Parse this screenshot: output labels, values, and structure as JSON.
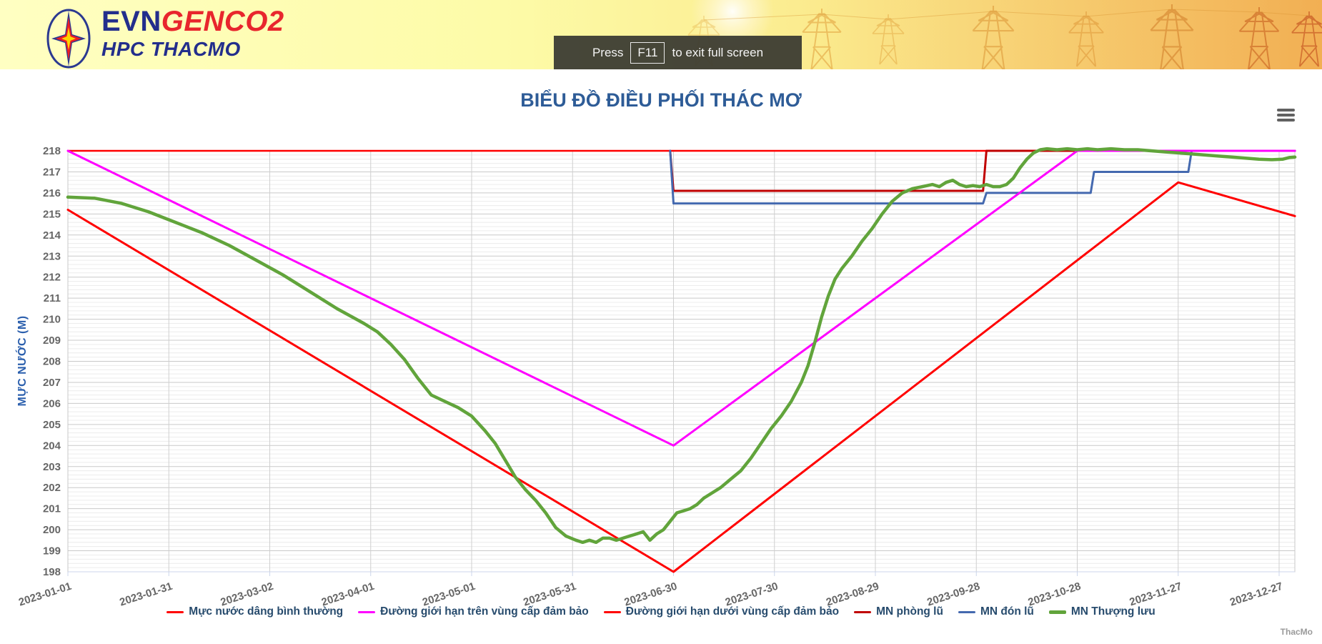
{
  "header": {
    "logo": {
      "brand_evn": "EVN",
      "brand_genco": "GENCO2",
      "brand_sub": "HPC THACMO"
    },
    "fullscreen_toast": {
      "prefix": "Press",
      "key": "F11",
      "suffix": "to exit full screen"
    }
  },
  "chart": {
    "credits": "ThacMo",
    "menu_icon": "hamburger"
  },
  "colors": {
    "title_text": "#2e5c97",
    "axis_title_text": "#2b5fad",
    "tick_label_text": "#666666",
    "legend_text": "#274b6d",
    "axis_line": "#ccd6eb",
    "major_grid": "#c9c9c9",
    "minor_grid": "#ececec"
  },
  "chart_data": {
    "type": "line",
    "title": "BIỂU ĐỒ ĐIỀU PHỐI THÁC MƠ",
    "y_axis": {
      "title": "MỰC NƯỚC (M)",
      "min": 198,
      "max": 218,
      "tick_step": 1,
      "minor_step": 0.2
    },
    "x_axis": {
      "tick_interval_days": 30,
      "start_day": 0,
      "end_day": 364.7,
      "tick_labels": [
        "2023-01-01",
        "2023-01-31",
        "2023-03-02",
        "2023-04-01",
        "2023-05-01",
        "2023-05-31",
        "2023-06-30",
        "2023-07-30",
        "2023-08-29",
        "2023-09-28",
        "2023-10-28",
        "2023-11-27",
        "2023-12-27"
      ]
    },
    "legend_position": "bottom-center",
    "grid": true,
    "draw_order": [
      0,
      3,
      4,
      2,
      1,
      5
    ],
    "series": [
      {
        "name": "Mực nước dâng bình thường",
        "color": "#ff0000",
        "width": 2.5,
        "points": [
          [
            0,
            218
          ],
          [
            364.7,
            218
          ]
        ]
      },
      {
        "name": "Đường giới hạn trên vùng cấp đảm bảo",
        "color": "#ff00ff",
        "width": 3,
        "points": [
          [
            0,
            218
          ],
          [
            180,
            204
          ],
          [
            300,
            218
          ],
          [
            364.7,
            218
          ]
        ]
      },
      {
        "name": "Đường giới hạn dưới vùng cấp đảm bảo",
        "color": "#ff0000",
        "width": 3,
        "points": [
          [
            0,
            215.2
          ],
          [
            180,
            198
          ],
          [
            330,
            216.5
          ],
          [
            364.7,
            214.9
          ]
        ]
      },
      {
        "name": "MN phòng lũ",
        "color": "#c00000",
        "width": 3,
        "points": [
          [
            179,
            218
          ],
          [
            180,
            216.1
          ],
          [
            272,
            216.1
          ],
          [
            273,
            218
          ],
          [
            364.7,
            218
          ]
        ]
      },
      {
        "name": "MN đón lũ",
        "color": "#4469af",
        "width": 3,
        "points": [
          [
            179,
            218
          ],
          [
            180,
            215.5
          ],
          [
            272,
            215.5
          ],
          [
            273,
            216
          ],
          [
            304,
            216
          ],
          [
            305,
            217
          ],
          [
            333,
            217
          ],
          [
            334,
            218
          ],
          [
            364.7,
            218
          ]
        ]
      },
      {
        "name": "MN Thượng lưu",
        "color": "#61a43b",
        "width": 4.5,
        "points": [
          [
            0,
            215.8
          ],
          [
            8,
            215.75
          ],
          [
            16,
            215.5
          ],
          [
            24,
            215.1
          ],
          [
            32,
            214.6
          ],
          [
            40,
            214.1
          ],
          [
            48,
            213.5
          ],
          [
            56,
            212.8
          ],
          [
            64,
            212.1
          ],
          [
            72,
            211.3
          ],
          [
            80,
            210.5
          ],
          [
            88,
            209.8
          ],
          [
            92,
            209.4
          ],
          [
            96,
            208.8
          ],
          [
            100,
            208.1
          ],
          [
            104,
            207.2
          ],
          [
            108,
            206.4
          ],
          [
            112,
            206.1
          ],
          [
            116,
            205.8
          ],
          [
            120,
            205.4
          ],
          [
            124,
            204.7
          ],
          [
            127,
            204.1
          ],
          [
            130,
            203.3
          ],
          [
            133,
            202.5
          ],
          [
            136,
            201.9
          ],
          [
            139,
            201.4
          ],
          [
            142,
            200.8
          ],
          [
            145,
            200.1
          ],
          [
            148,
            199.7
          ],
          [
            151,
            199.5
          ],
          [
            153,
            199.4
          ],
          [
            155,
            199.5
          ],
          [
            157,
            199.4
          ],
          [
            159,
            199.6
          ],
          [
            161,
            199.6
          ],
          [
            163,
            199.5
          ],
          [
            165,
            199.6
          ],
          [
            167,
            199.7
          ],
          [
            169,
            199.8
          ],
          [
            171,
            199.9
          ],
          [
            173,
            199.5
          ],
          [
            175,
            199.8
          ],
          [
            177,
            200.0
          ],
          [
            179,
            200.4
          ],
          [
            181,
            200.8
          ],
          [
            183,
            200.9
          ],
          [
            185,
            201.0
          ],
          [
            187,
            201.2
          ],
          [
            189,
            201.5
          ],
          [
            191,
            201.7
          ],
          [
            194,
            202.0
          ],
          [
            197,
            202.4
          ],
          [
            200,
            202.8
          ],
          [
            203,
            203.4
          ],
          [
            206,
            204.1
          ],
          [
            209,
            204.8
          ],
          [
            212,
            205.4
          ],
          [
            215,
            206.1
          ],
          [
            218,
            207.0
          ],
          [
            220,
            207.8
          ],
          [
            222,
            208.9
          ],
          [
            224,
            210.1
          ],
          [
            226,
            211.1
          ],
          [
            228,
            211.9
          ],
          [
            230,
            212.4
          ],
          [
            233,
            213.0
          ],
          [
            236,
            213.7
          ],
          [
            239,
            214.3
          ],
          [
            242,
            215.0
          ],
          [
            245,
            215.6
          ],
          [
            248,
            216.0
          ],
          [
            251,
            216.2
          ],
          [
            254,
            216.3
          ],
          [
            257,
            216.4
          ],
          [
            259,
            216.3
          ],
          [
            261,
            216.5
          ],
          [
            263,
            216.6
          ],
          [
            265,
            216.4
          ],
          [
            267,
            216.3
          ],
          [
            269,
            216.35
          ],
          [
            271,
            216.3
          ],
          [
            273,
            216.4
          ],
          [
            275,
            216.3
          ],
          [
            277,
            216.3
          ],
          [
            279,
            216.4
          ],
          [
            281,
            216.7
          ],
          [
            283,
            217.2
          ],
          [
            285,
            217.6
          ],
          [
            287,
            217.9
          ],
          [
            289,
            218.05
          ],
          [
            291,
            218.1
          ],
          [
            294,
            218.05
          ],
          [
            297,
            218.1
          ],
          [
            300,
            218.05
          ],
          [
            303,
            218.1
          ],
          [
            306,
            218.05
          ],
          [
            310,
            218.1
          ],
          [
            314,
            218.05
          ],
          [
            318,
            218.05
          ],
          [
            322,
            218.0
          ],
          [
            326,
            217.95
          ],
          [
            330,
            217.9
          ],
          [
            334,
            217.85
          ],
          [
            338,
            217.8
          ],
          [
            342,
            217.75
          ],
          [
            346,
            217.7
          ],
          [
            350,
            217.65
          ],
          [
            354,
            217.6
          ],
          [
            358,
            217.58
          ],
          [
            361,
            217.6
          ],
          [
            363,
            217.68
          ],
          [
            364.7,
            217.7
          ]
        ]
      }
    ]
  }
}
